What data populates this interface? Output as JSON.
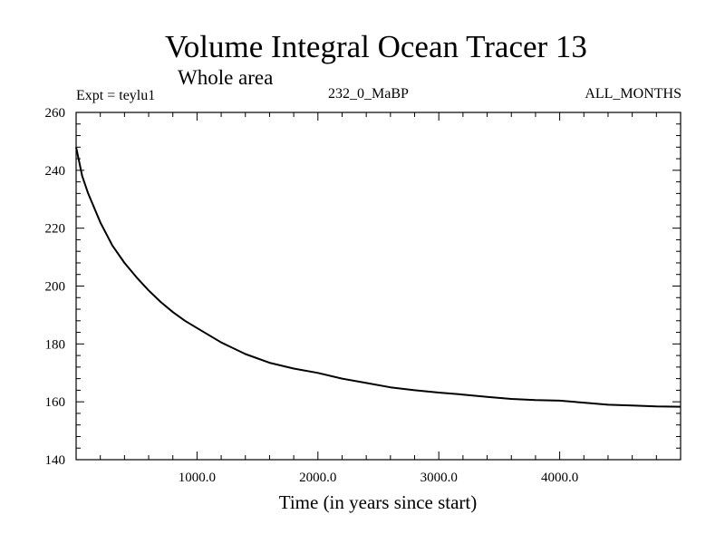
{
  "header": {
    "title": "Volume Integral Ocean Tracer 13",
    "subtitle": "Whole area",
    "expt": "Expt = teylu1",
    "period": "232_0_MaBP",
    "months": "ALL_MONTHS"
  },
  "chart_data": {
    "type": "line",
    "title": "Volume Integral Ocean Tracer 13",
    "subtitle": "Whole area",
    "xlabel": "Time (in years since start)",
    "ylabel": "",
    "xlim": [
      0,
      5000
    ],
    "ylim": [
      140,
      260
    ],
    "xticks": [
      1000,
      2000,
      3000,
      4000
    ],
    "xtick_labels": [
      "1000.0",
      "2000.0",
      "3000.0",
      "4000.0"
    ],
    "yticks": [
      140,
      160,
      180,
      200,
      220,
      240,
      260
    ],
    "ytick_labels": [
      "140",
      "160",
      "180",
      "200",
      "220",
      "240",
      "260"
    ],
    "grid": false,
    "series": [
      {
        "name": "Ocean Tracer 13",
        "x": [
          0,
          50,
          100,
          200,
          300,
          400,
          500,
          600,
          700,
          800,
          900,
          1000,
          1200,
          1400,
          1600,
          1800,
          2000,
          2200,
          2400,
          2600,
          2800,
          3000,
          3200,
          3400,
          3600,
          3800,
          4000,
          4200,
          4400,
          4600,
          4800,
          5000
        ],
        "y": [
          248,
          238,
          232,
          222,
          214,
          208,
          203,
          198.5,
          194.5,
          191,
          188,
          185.5,
          180.5,
          176.5,
          173.5,
          171.5,
          170,
          168,
          166.5,
          165,
          164,
          163.2,
          162.5,
          161.7,
          161,
          160.6,
          160.4,
          159.7,
          159,
          158.7,
          158.4,
          158.3
        ]
      }
    ]
  }
}
